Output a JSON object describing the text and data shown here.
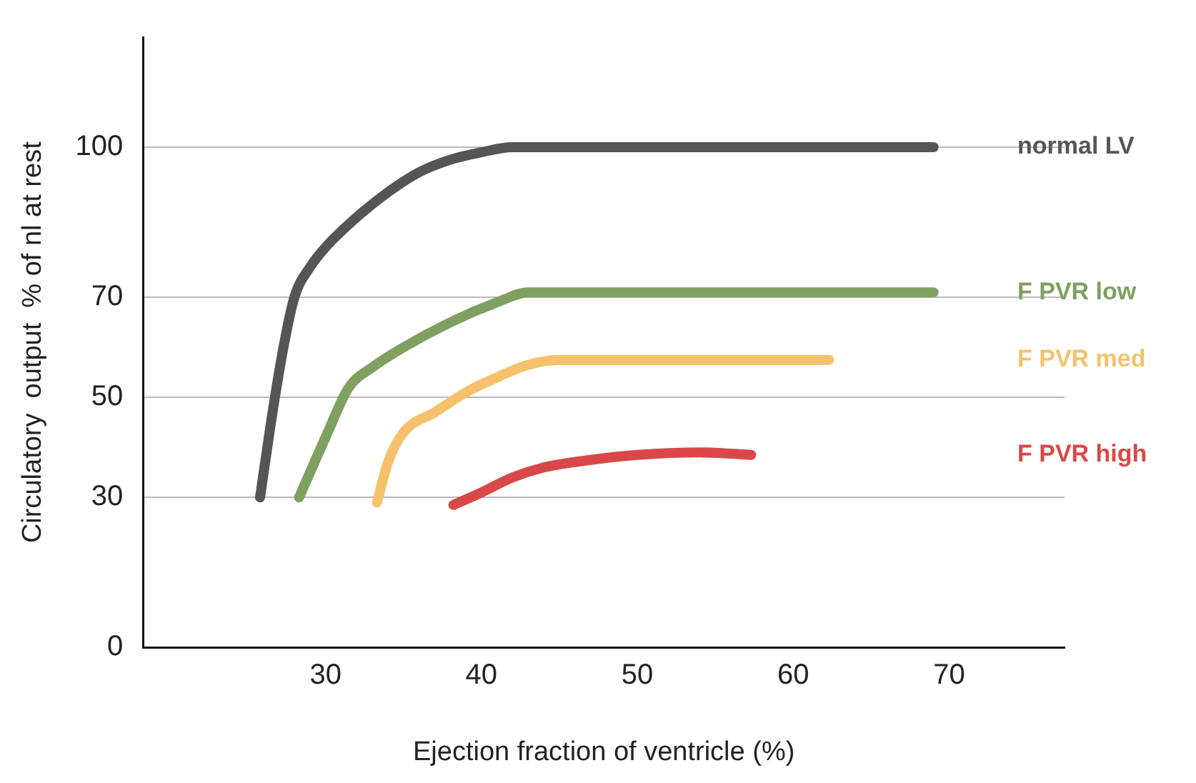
{
  "chart_data": {
    "type": "line",
    "xlabel": "Ejection fraction of ventricle (%)",
    "ylabel": "Circulatory  output  % of nl at rest",
    "xlim": [
      18.3,
      77.4
    ],
    "xticks": [
      30,
      40,
      50,
      60,
      70
    ],
    "ylim": [
      0,
      122
    ],
    "yticks": [
      0,
      30,
      50,
      70,
      100
    ],
    "grid": "y",
    "legend": false,
    "marker": "none",
    "line_style": "solid",
    "series": [
      {
        "name": "normal LV",
        "color": "#555558",
        "x": [
          25.8,
          26.5,
          27.3,
          28,
          29,
          30,
          32,
          34,
          36,
          38,
          40,
          42,
          45,
          69
        ],
        "values": [
          30,
          45,
          60,
          70,
          76,
          80,
          86,
          91,
          95,
          97.5,
          99,
          100,
          100,
          100
        ]
      },
      {
        "name": "F PVR low",
        "color": "#7fa060",
        "x": [
          28.3,
          30,
          31.5,
          33,
          35,
          38,
          41,
          43,
          45,
          69
        ],
        "values": [
          30,
          42,
          52,
          56,
          60,
          65,
          69,
          71,
          71,
          71
        ]
      },
      {
        "name": "F PVR med",
        "color": "#f5c26b",
        "x": [
          33.3,
          34,
          35,
          37,
          39,
          41,
          43,
          45,
          62.3
        ],
        "values": [
          29,
          37,
          43,
          47,
          51,
          54,
          56.5,
          57.5,
          57.5
        ]
      },
      {
        "name": "F PVR high",
        "color": "#d94848",
        "x": [
          38.2,
          40,
          42,
          44,
          47,
          50,
          54,
          57.3
        ],
        "values": [
          28.5,
          31,
          34,
          36,
          37.5,
          38.5,
          39,
          38.5
        ]
      }
    ]
  }
}
